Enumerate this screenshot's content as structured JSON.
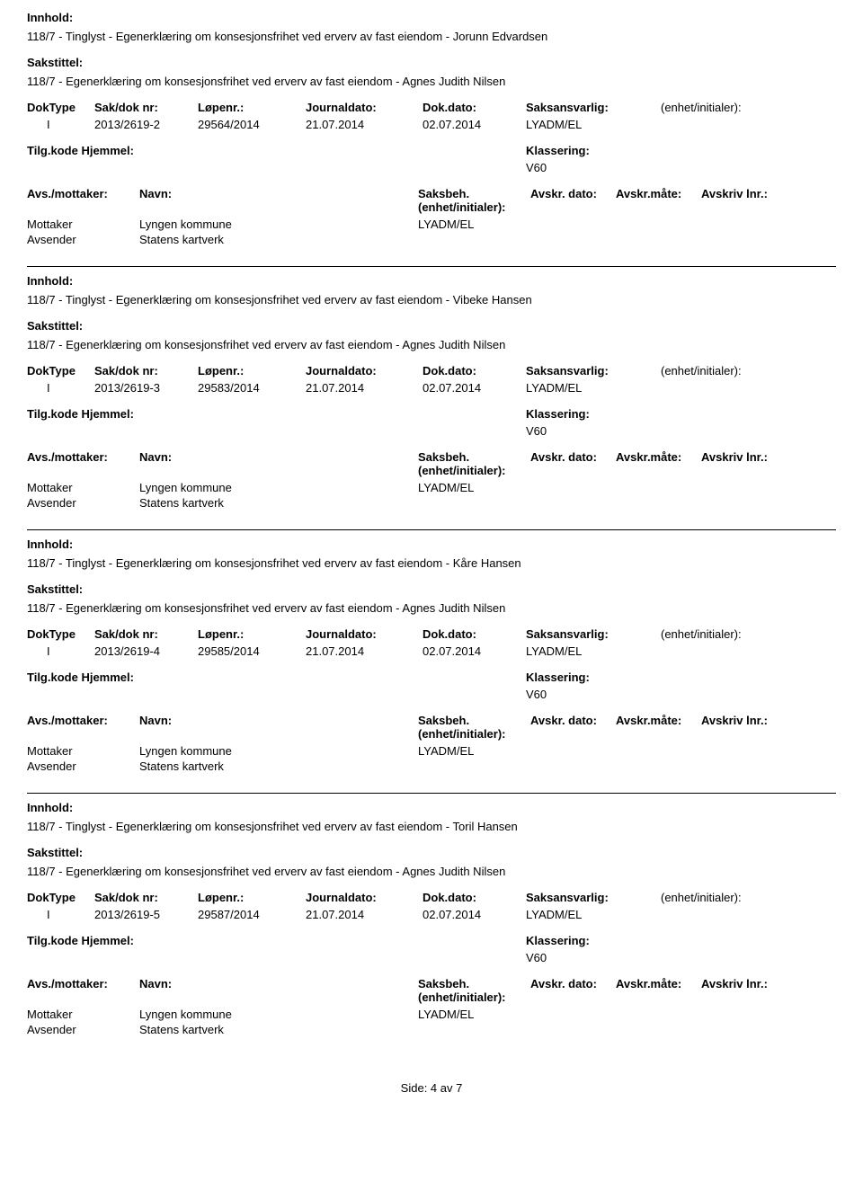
{
  "labels": {
    "innhold": "Innhold:",
    "sakstittel": "Sakstittel:",
    "doktype": "DokType",
    "sakdok": "Sak/dok nr:",
    "lopenr": "Løpenr.:",
    "journaldato": "Journaldato:",
    "dokdato": "Dok.dato:",
    "saksansvarlig": "Saksansvarlig:",
    "enhet": "(enhet/initialer):",
    "tilgkode": "Tilg.kode",
    "hjemmel": "Hjemmel:",
    "klassering": "Klassering:",
    "avsmottaker": "Avs./mottaker:",
    "navn": "Navn:",
    "saksbeh": "Saksbeh.(enhet/initialer):",
    "avskrdato": "Avskr. dato:",
    "avskrmate": "Avskr.måte:",
    "avskrivlnr": "Avskriv lnr.:",
    "mottaker": "Mottaker",
    "avsender": "Avsender"
  },
  "common": {
    "sakstittel_text": "118/7 - Egenerklæring om konsesjonsfrihet ved erverv av fast eiendom - Agnes Judith Nilsen",
    "doktype_val": "I",
    "jdato": "21.07.2014",
    "ddato": "02.07.2014",
    "saksansv": "LYADM/EL",
    "klass": "V60",
    "mottaker_navn": "Lyngen kommune",
    "avsender_navn": "Statens kartverk",
    "saksbeh_val": "LYADM/EL"
  },
  "records": [
    {
      "innhold": "118/7 - Tinglyst - Egenerklæring om konsesjonsfrihet ved erverv av fast eiendom - Jorunn Edvardsen",
      "sakdok": "2013/2619-2",
      "lopenr": "29564/2014"
    },
    {
      "innhold": "118/7 - Tinglyst - Egenerklæring om konsesjonsfrihet ved erverv av fast eiendom - Vibeke Hansen",
      "sakdok": "2013/2619-3",
      "lopenr": "29583/2014"
    },
    {
      "innhold": "118/7 - Tinglyst - Egenerklæring om konsesjonsfrihet ved erverv av fast eiendom - Kåre Hansen",
      "sakdok": "2013/2619-4",
      "lopenr": "29585/2014"
    },
    {
      "innhold": "118/7 - Tinglyst - Egenerklæring om konsesjonsfrihet ved erverv av fast eiendom - Toril Hansen",
      "sakdok": "2013/2619-5",
      "lopenr": "29587/2014"
    }
  ],
  "footer": "Side: 4 av 7"
}
